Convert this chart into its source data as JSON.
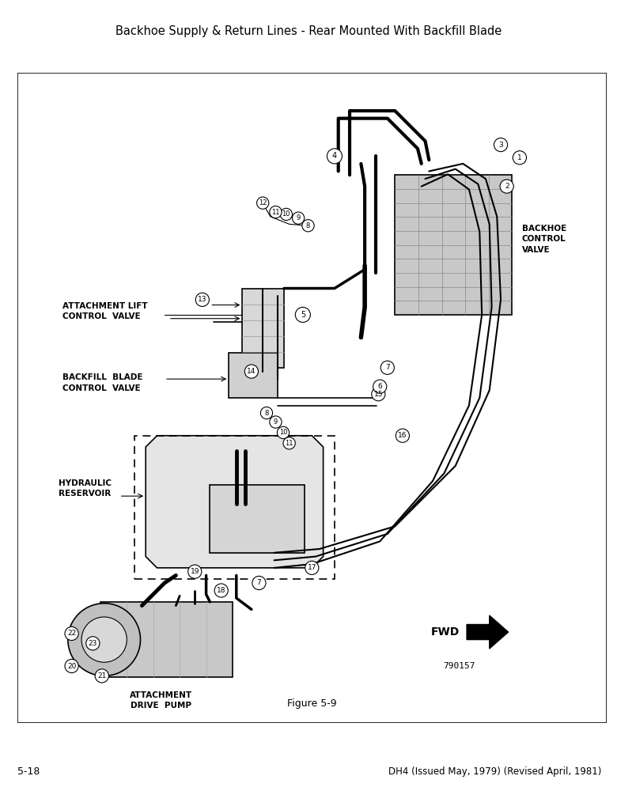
{
  "title": "Backhoe Supply & Return Lines - Rear Mounted With Backfill Blade",
  "footer_left": "5-18",
  "footer_right": "DH4 (Issued May, 1979) (Revised April, 1981)",
  "figure_label": "Figure 5-9",
  "part_number": "790157",
  "background_color": "#ffffff",
  "labels": {
    "attachment_lift": "ATTACHMENT LIFT\nCONTROL  VALVE",
    "backfill_blade": "BACKFILL  BLADE\nCONTROL  VALVE",
    "hydraulic_reservoir": "HYDRAULIC\nRESERVOIR",
    "backhoe_control": "BACKHOE\nCONTROL\nVALVE",
    "attachment_drive": "ATTACHMENT\nDRIVE  PUMP",
    "fwd": "FWD"
  }
}
